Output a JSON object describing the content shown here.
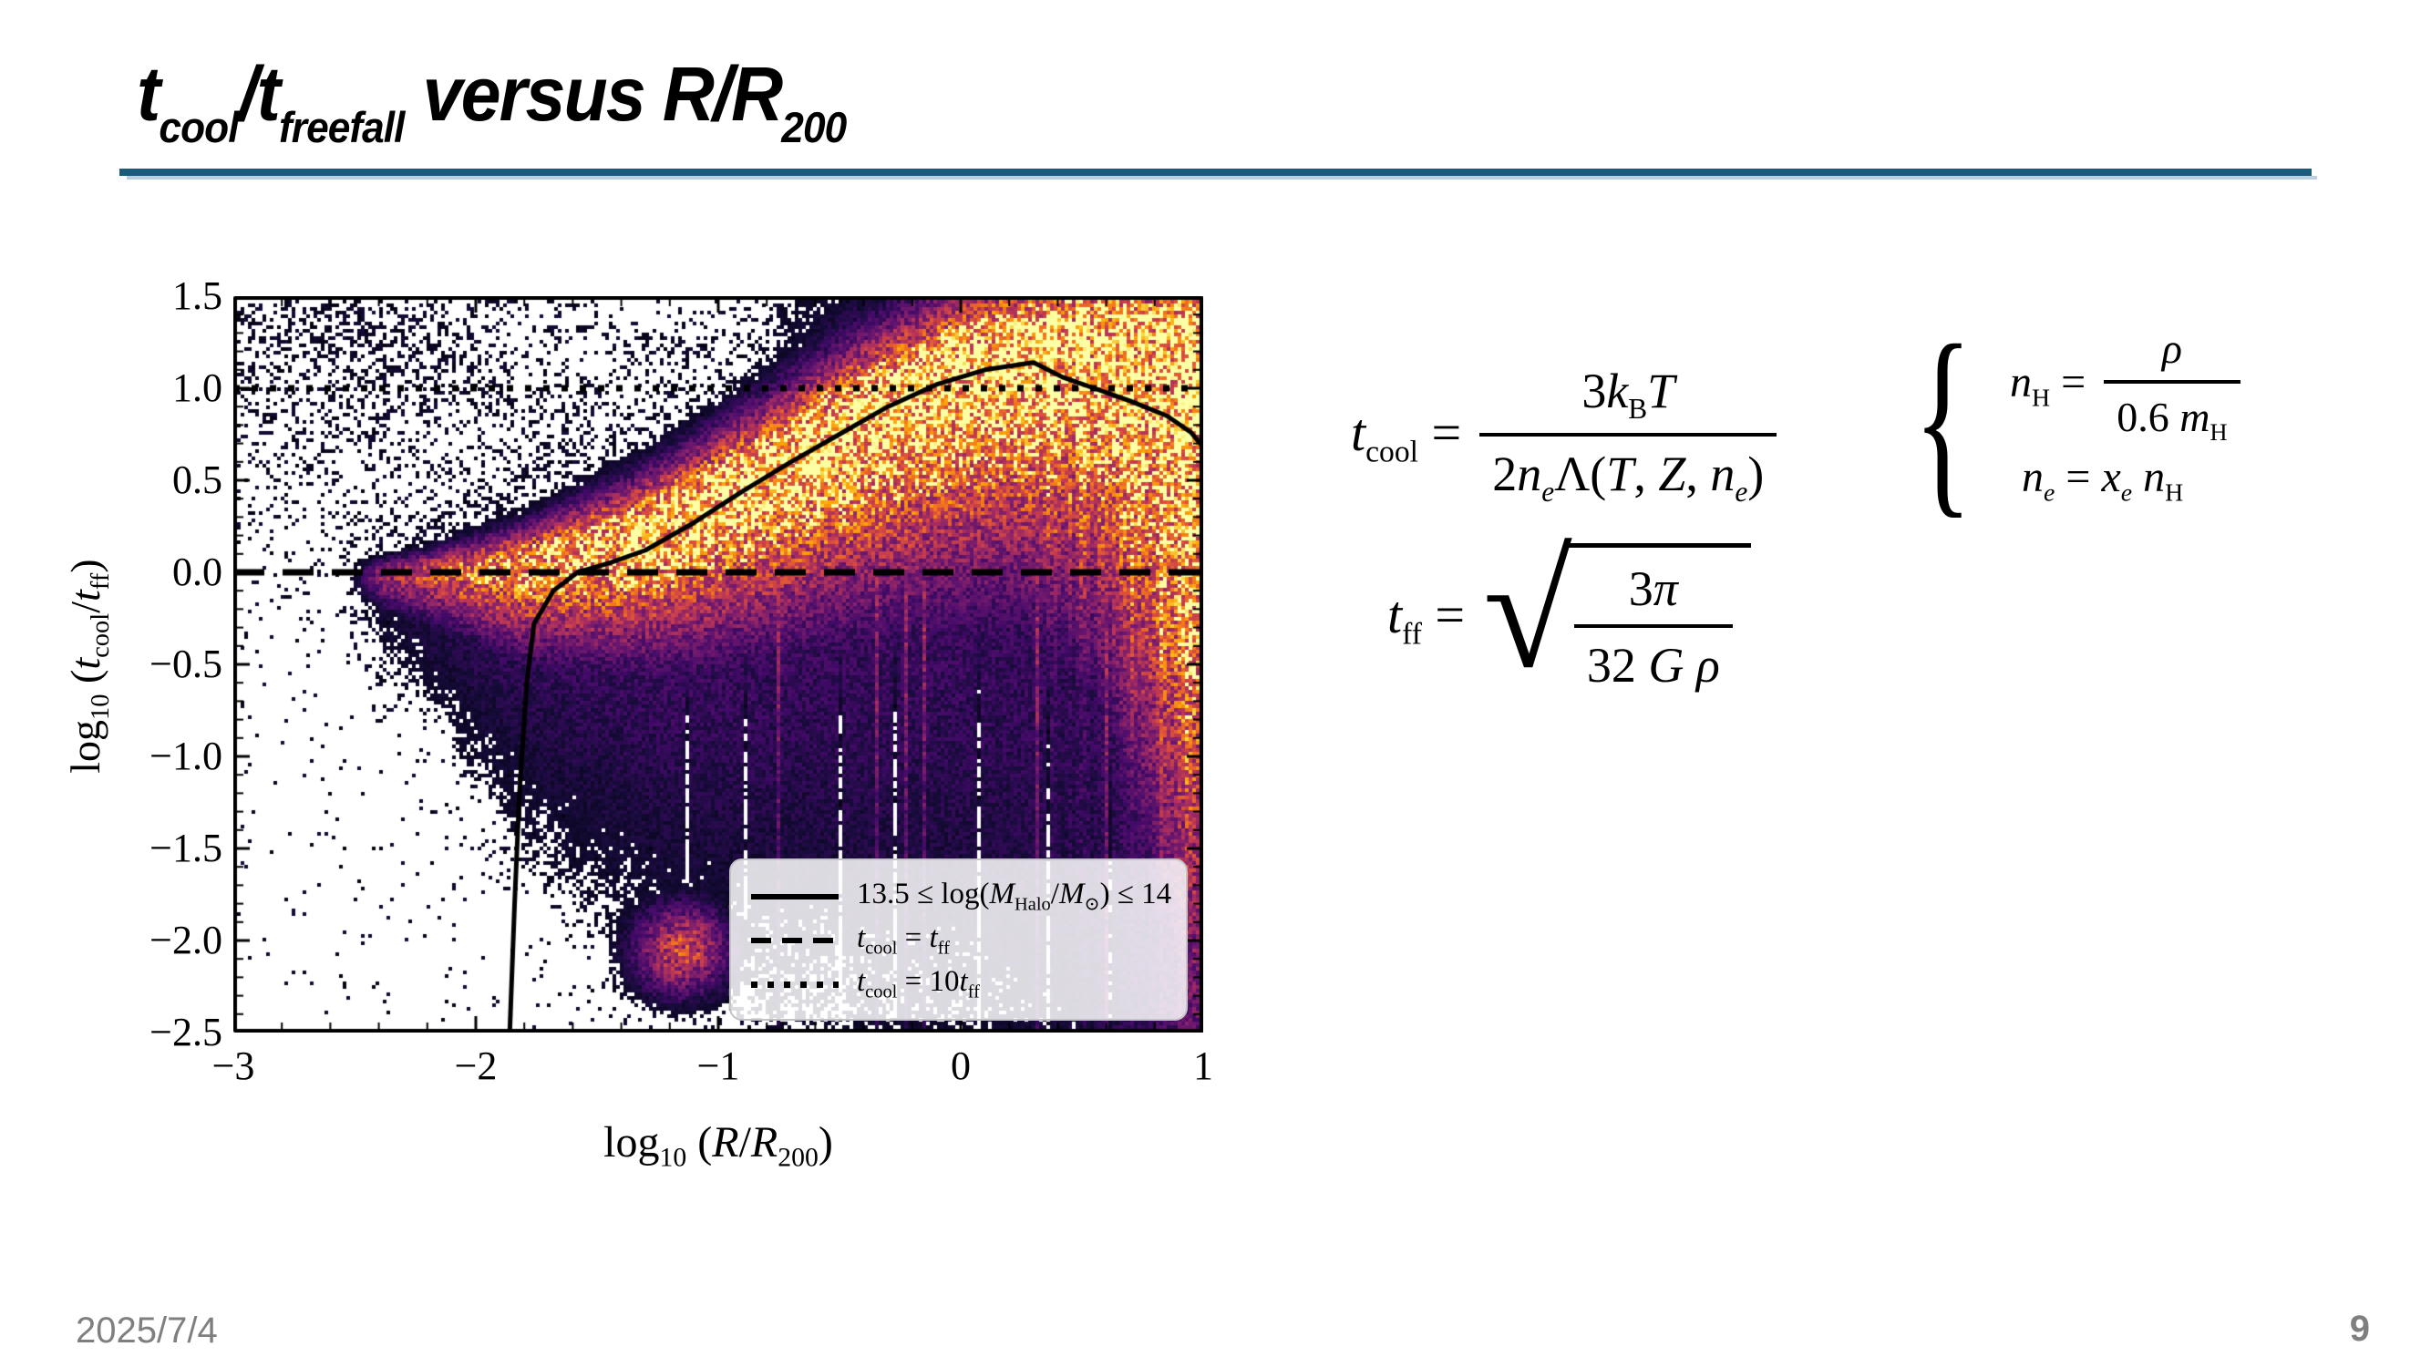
{
  "slide": {
    "title": "t_{cool}/t_{freefall} versus R/R_{200}",
    "accent_color": "#1b5c7c",
    "footer": {
      "date": "2025/7/4",
      "page": "9"
    }
  },
  "equations": {
    "brace": "{",
    "tcool": {
      "lhs": "*t*_{cool} =",
      "num": "3*k*_{B}*T*",
      "den": "2*n*_{*e*}Λ(*T*, *Z*, *n*_{*e*})"
    },
    "nH": {
      "lhs": "*n*_{H} =",
      "num": "*ρ*",
      "den": "0.6 *m*_{H}"
    },
    "ne": {
      "line": "*n*_{*e*} = *x*_{*e*} *n*_{H}"
    },
    "tff": {
      "lhs": "*t*_{ff} =",
      "num": "3*π*",
      "den": "32 *G* *ρ*"
    }
  },
  "chart_data": {
    "type": "heatmap",
    "title": "",
    "xlabel": "log_{10} (*R*/*R*_{200})",
    "ylabel": "log_{10} (*t*_{cool}/*t*_{ff})",
    "xlim": [
      -3,
      1
    ],
    "ylim": [
      -2.5,
      1.5
    ],
    "x_tick_values": [
      -3,
      -2,
      -1,
      0,
      1
    ],
    "y_tick_values": [
      1.5,
      1.0,
      0.5,
      0.0,
      -0.5,
      -1.0,
      -1.5,
      -2.0,
      -2.5
    ],
    "x_tick_labels": [
      "−3",
      "−2",
      "−1",
      "0",
      "1"
    ],
    "y_tick_labels": [
      "1.5",
      "1.0",
      "0.5",
      "0.0",
      "−0.5",
      "−1.0",
      "−1.5",
      "−2.0",
      "−2.5"
    ],
    "x_minor_step": 0.2,
    "y_minor_step": 0.1,
    "grid": false,
    "colormap": "inferno",
    "colormap_stops": [
      [
        0.0,
        "#000004"
      ],
      [
        0.13,
        "#160b39"
      ],
      [
        0.25,
        "#420a68"
      ],
      [
        0.38,
        "#6a176e"
      ],
      [
        0.5,
        "#932667"
      ],
      [
        0.62,
        "#bc3754"
      ],
      [
        0.73,
        "#dd513a"
      ],
      [
        0.82,
        "#f37819"
      ],
      [
        0.9,
        "#fca50a"
      ],
      [
        0.96,
        "#f6d746"
      ],
      [
        1.0,
        "#fcffa4"
      ]
    ],
    "legend": {
      "position": "lower right",
      "entries": [
        {
          "style": "solid",
          "label": "13.5 ≤ log(*M*_{Halo}/*M*_{⊙}) ≤ 14"
        },
        {
          "style": "dashed",
          "label": "*t*_{cool} = *t*_{ff}"
        },
        {
          "style": "dotted",
          "label": "*t*_{cool} = 10*t*_{ff}"
        }
      ]
    },
    "reference_lines": [
      {
        "name": "tcool = tff",
        "y": 0.0,
        "style": "dashed"
      },
      {
        "name": "tcool = 10tff",
        "y": 1.0,
        "style": "dotted"
      }
    ],
    "median_line": {
      "name": "13.5 ≤ log(M_Halo/M_⊙) ≤ 14",
      "points": [
        [
          -1.86,
          -2.5
        ],
        [
          -1.84,
          -1.8
        ],
        [
          -1.82,
          -1.2
        ],
        [
          -1.79,
          -0.6
        ],
        [
          -1.76,
          -0.28
        ],
        [
          -1.68,
          -0.1
        ],
        [
          -1.58,
          0.0
        ],
        [
          -1.45,
          0.05
        ],
        [
          -1.3,
          0.12
        ],
        [
          -1.1,
          0.27
        ],
        [
          -0.9,
          0.44
        ],
        [
          -0.7,
          0.6
        ],
        [
          -0.5,
          0.75
        ],
        [
          -0.3,
          0.9
        ],
        [
          -0.1,
          1.02
        ],
        [
          0.1,
          1.1
        ],
        [
          0.3,
          1.14
        ],
        [
          0.42,
          1.06
        ],
        [
          0.55,
          1.0
        ],
        [
          0.7,
          0.93
        ],
        [
          0.85,
          0.85
        ],
        [
          0.95,
          0.76
        ],
        [
          1.0,
          0.68
        ]
      ]
    },
    "density_ridge": [
      [
        -2.45,
        -0.02,
        0.05,
        0.09,
        0.4
      ],
      [
        -2.2,
        0.0,
        0.07,
        0.15,
        0.6
      ],
      [
        -2.0,
        0.02,
        0.1,
        0.22,
        0.75
      ],
      [
        -1.8,
        0.06,
        0.12,
        0.3,
        0.85
      ],
      [
        -1.6,
        0.12,
        0.15,
        0.35,
        0.9
      ],
      [
        -1.4,
        0.2,
        0.17,
        0.4,
        0.95
      ],
      [
        -1.2,
        0.3,
        0.19,
        0.45,
        1.0
      ],
      [
        -1.0,
        0.43,
        0.21,
        0.5,
        1.0
      ],
      [
        -0.8,
        0.57,
        0.23,
        0.55,
        1.0
      ],
      [
        -0.6,
        0.72,
        0.25,
        0.6,
        1.0
      ],
      [
        -0.4,
        0.87,
        0.26,
        0.65,
        1.0
      ],
      [
        -0.2,
        1.0,
        0.27,
        0.7,
        1.0
      ],
      [
        0.0,
        1.12,
        0.27,
        0.75,
        1.0
      ],
      [
        0.2,
        1.22,
        0.26,
        0.8,
        1.0
      ],
      [
        0.4,
        1.28,
        0.25,
        0.9,
        1.0
      ],
      [
        0.6,
        1.3,
        0.25,
        1.1,
        1.0
      ],
      [
        0.8,
        1.27,
        0.32,
        1.7,
        1.0
      ],
      [
        1.0,
        1.15,
        0.5,
        2.4,
        1.0
      ]
    ],
    "hotspots": [
      [
        0.97,
        0.8,
        0.07,
        0.28,
        0.5
      ],
      [
        0.75,
        0.42,
        0.28,
        0.1,
        0.3
      ],
      [
        0.15,
        1.32,
        0.45,
        0.15,
        0.3
      ]
    ],
    "cluster": [
      -1.15,
      -2.05,
      0.13,
      0.16,
      0.6
    ],
    "right_fill": {
      "start": 0.45,
      "base": 0.26,
      "band_y": 0.4,
      "band_amp": 0.22,
      "band_sy": 0.5
    },
    "noise": {
      "base": 0.016
    },
    "render": {
      "bins_x": 266,
      "bins_y": 202,
      "seed": 7
    }
  }
}
